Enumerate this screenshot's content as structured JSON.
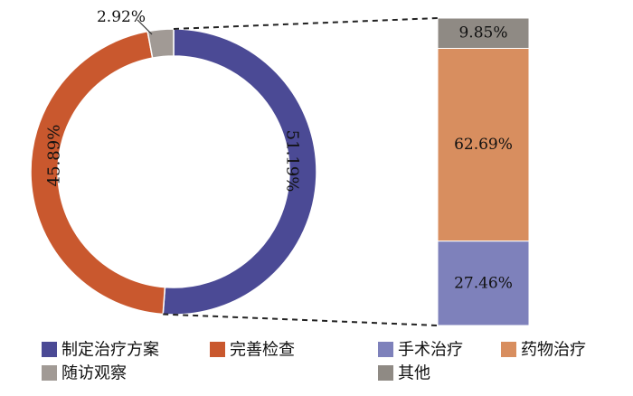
{
  "chart_data": [
    {
      "type": "pie",
      "style": "donut",
      "slices": [
        {
          "label": "制定治疗方案",
          "value": 51.19,
          "display": "51.19%",
          "color": "#4b4a95"
        },
        {
          "label": "完善检查",
          "value": 45.89,
          "display": "45.89%",
          "color": "#c9582e"
        },
        {
          "label": "随访观察",
          "value": 2.92,
          "display": "2.92%",
          "color": "#a19a95"
        }
      ]
    },
    {
      "type": "bar",
      "style": "stacked-100",
      "breakdown_of": "制定治疗方案",
      "segments": [
        {
          "label": "手术治疗",
          "value": 27.46,
          "display": "27.46%",
          "color": "#7e81bb"
        },
        {
          "label": "药物治疗",
          "value": 62.69,
          "display": "62.69%",
          "color": "#d88e5f"
        },
        {
          "label": "其他",
          "value": 9.85,
          "display": "9.85%",
          "color": "#8f8a84"
        }
      ]
    }
  ],
  "legend": [
    {
      "label": "制定治疗方案",
      "color": "#4b4a95"
    },
    {
      "label": "完善检查",
      "color": "#c9582e"
    },
    {
      "label": "手术治疗",
      "color": "#7e81bb"
    },
    {
      "label": "药物治疗",
      "color": "#d88e5f"
    },
    {
      "label": "随访观察",
      "color": "#a19a95"
    },
    {
      "label": "其他",
      "color": "#8f8a84"
    }
  ]
}
